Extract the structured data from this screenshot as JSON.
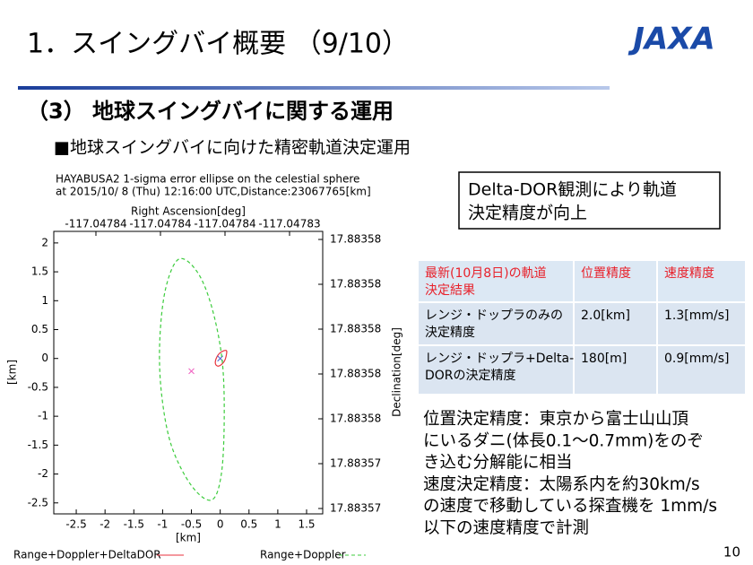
{
  "slide": {
    "title": "1．スイングバイ概要 （9/10）",
    "logo": "JAXA",
    "heading": "（3） 地球スイングバイに関する運用",
    "subheading": "■地球スイングバイに向けた精密軌道決定運用",
    "callout": [
      "Delta-DOR観測により軌道",
      "決定精度が向上"
    ],
    "table": {
      "header": [
        [
          "最新(10月8日)の軌道",
          "決定結果"
        ],
        [
          "位置精度"
        ],
        [
          "速度精度"
        ]
      ],
      "rows": [
        [
          [
            "レンジ・ドップラのみの",
            "決定精度"
          ],
          [
            "2.0[km]"
          ],
          [
            "1.3[mm/s]"
          ]
        ],
        [
          [
            "レンジ・ドップラ+Delta-",
            "DORの決定精度"
          ],
          [
            "180[m]"
          ],
          [
            "0.9[mm/s]"
          ]
        ]
      ]
    },
    "notes": [
      "位置決定精度：東京から富士山山頂",
      "にいるダニ(体長0.1～0.7mm)をのぞ",
      "き込む分解能に相当",
      "速度決定精度：太陽系内を約30km/s",
      "の速度で移動している探査機を 1mm/s",
      "以下の速度精度で計測"
    ],
    "page_number": "10"
  },
  "chart_data": {
    "type": "line",
    "title": [
      "HAYABUSA2 1-sigma error ellipse on the celestial sphere",
      "at 2015/10/ 8 (Thu) 12:16:00 UTC,Distance:23067765[km]"
    ],
    "xlabel": "[km]",
    "ylabel": "[km]",
    "x2label": "Right Ascension[deg]",
    "y2label": "Declination[deg]",
    "xlim": [
      -2.89,
      1.78
    ],
    "ylim": [
      -2.69,
      2.2
    ],
    "xticks": [
      -2.5,
      -2,
      -1.5,
      -1,
      -0.5,
      0,
      0.5,
      1,
      1.5
    ],
    "yticks": [
      -2.5,
      -2,
      -1.5,
      -1,
      -0.5,
      0,
      0.5,
      1,
      1.5,
      2
    ],
    "x2ticks": [
      "-117.04784",
      "-117.04784",
      "-117.04784",
      "-117.04783"
    ],
    "y2ticks": [
      "17.88358",
      "17.88358",
      "17.88358",
      "17.88358",
      "17.88358",
      "17.88357",
      "17.88357"
    ],
    "series": [
      {
        "name": "Range+Doppler+DeltaDOR",
        "color": "#e8323c",
        "dash": false,
        "x": [
          0.1,
          0.0,
          -0.07,
          -0.08,
          -0.02,
          0.07,
          0.11
        ],
        "values": [
          0.14,
          0.1,
          0.0,
          -0.1,
          -0.13,
          -0.05,
          0.08
        ],
        "center": [
          0,
          0
        ],
        "center_color": "#4a5fd0"
      },
      {
        "name": "Range+Doppler",
        "color": "#3ccc3c",
        "dash": true,
        "x": [
          -0.72,
          -0.95,
          -1.05,
          -1.02,
          -0.85,
          -0.5,
          -0.15,
          0.02,
          0.07,
          0.03,
          -0.15,
          -0.4
        ],
        "values": [
          1.72,
          1.2,
          0.3,
          -0.6,
          -1.5,
          -2.2,
          -2.45,
          -2.0,
          -1.0,
          0.0,
          0.9,
          1.5
        ],
        "center": [
          -0.5,
          -0.22
        ],
        "center_color": "#f060c0"
      }
    ]
  }
}
